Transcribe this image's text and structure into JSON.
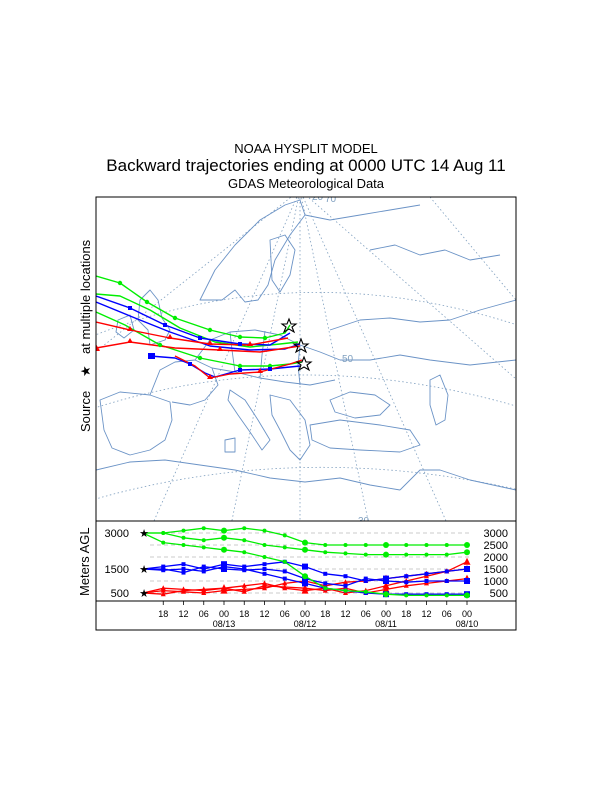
{
  "header": {
    "title": "NOAA HYSPLIT MODEL",
    "subtitle": "Backward trajectories ending at 0000 UTC 14 Aug 11",
    "data_source": "GDAS Meteorological Data"
  },
  "map": {
    "source_label": "Source",
    "source_symbol": "★",
    "source_suffix": "at multiple locations",
    "grid_labels": [
      "20",
      "70",
      "50",
      "30"
    ]
  },
  "colors": {
    "red": "#ff0000",
    "blue": "#0000ff",
    "green": "#00ee00",
    "coast": "#6b93c6",
    "grid": "#7f9fbf"
  },
  "chart_data": {
    "type": "line",
    "title": "Backward trajectories ending at 0000 UTC 14 Aug 11",
    "ylabel": "Meters AGL",
    "ylim": [
      0,
      3300
    ],
    "y_ticks_left": [
      3000,
      1500,
      500
    ],
    "y_ticks_right": [
      3000,
      2500,
      2000,
      1500,
      1000,
      500
    ],
    "x_hours_back": [
      0,
      6,
      12,
      18,
      24,
      30,
      36,
      42,
      48,
      54,
      60,
      66,
      72,
      78,
      84,
      90,
      96
    ],
    "x_tick_labels": [
      "18",
      "12",
      "06",
      "00",
      "18",
      "12",
      "06",
      "00",
      "18",
      "12",
      "06",
      "00",
      "18",
      "12",
      "06",
      "00"
    ],
    "date_labels": [
      "08/13",
      "08/12",
      "08/11",
      "08/10"
    ],
    "series": [
      {
        "color": "red",
        "marker": "triangle",
        "values": [
          500,
          450,
          600,
          650,
          700,
          550,
          800,
          750,
          700,
          600,
          700,
          500,
          650,
          800,
          900,
          1000,
          1100
        ]
      },
      {
        "color": "red",
        "marker": "triangle",
        "values": [
          500,
          600,
          550,
          500,
          600,
          650,
          700,
          900,
          1000,
          800,
          950,
          1000,
          1100,
          1200,
          1300,
          1400,
          1500
        ]
      },
      {
        "color": "red",
        "marker": "triangle",
        "values": [
          500,
          700,
          650,
          600,
          700,
          800,
          900,
          700,
          600,
          700,
          500,
          600,
          800,
          1000,
          1200,
          1400,
          1800
        ]
      },
      {
        "color": "blue",
        "marker": "square",
        "values": [
          1500,
          1450,
          1500,
          1400,
          1600,
          1500,
          1300,
          1100,
          900,
          700,
          600,
          500,
          450,
          450,
          450,
          450,
          450
        ]
      },
      {
        "color": "blue",
        "marker": "square",
        "values": [
          1500,
          1500,
          1350,
          1600,
          1500,
          1450,
          1500,
          1400,
          1100,
          900,
          800,
          1100,
          1000,
          950,
          1000,
          1000,
          1000
        ]
      },
      {
        "color": "blue",
        "marker": "square",
        "values": [
          1500,
          1600,
          1700,
          1500,
          1700,
          1600,
          1700,
          1800,
          1600,
          1300,
          1200,
          1000,
          1100,
          1200,
          1300,
          1400,
          1500
        ]
      },
      {
        "color": "green",
        "marker": "circle",
        "values": [
          3000,
          3000,
          3100,
          3200,
          3100,
          3200,
          3100,
          2900,
          2600,
          2500,
          2500,
          2500,
          2500,
          2500,
          2500,
          2500,
          2500
        ]
      },
      {
        "color": "green",
        "marker": "circle",
        "values": [
          3000,
          3000,
          2800,
          2700,
          2800,
          2700,
          2500,
          2400,
          2300,
          2200,
          2150,
          2100,
          2100,
          2100,
          2100,
          2100,
          2200
        ]
      },
      {
        "color": "green",
        "marker": "circle",
        "values": [
          3000,
          2600,
          2500,
          2400,
          2300,
          2200,
          2000,
          1800,
          1200,
          700,
          600,
          550,
          450,
          400,
          400,
          400,
          400
        ]
      }
    ]
  }
}
